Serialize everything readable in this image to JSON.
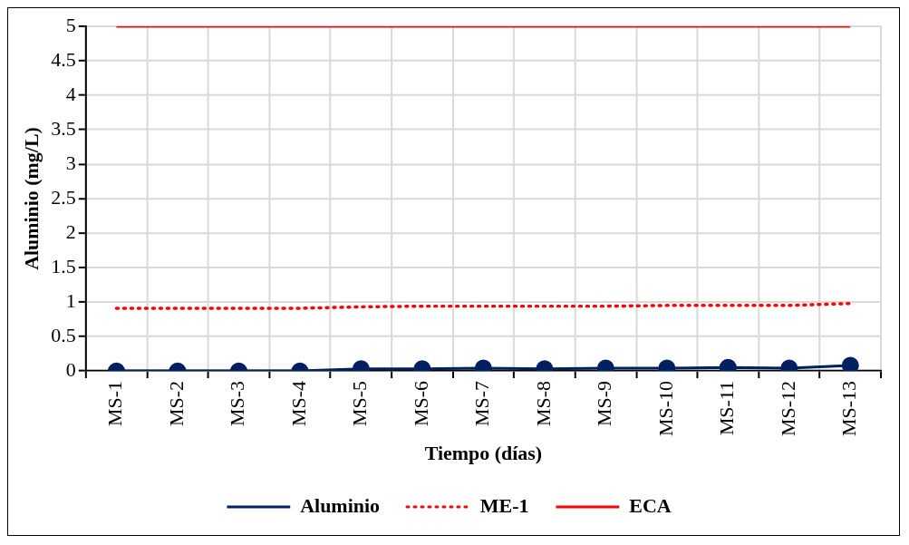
{
  "chart_data": {
    "type": "line",
    "xlabel": "Tiempo (días)",
    "ylabel": "Aluminio (mg/L)",
    "categories": [
      "MS-1",
      "MS-2",
      "MS-3",
      "MS-4",
      "MS-5",
      "MS-6",
      "MS-7",
      "MS-8",
      "MS-9",
      "MS-10",
      "MS-11",
      "MS-12",
      "MS-13"
    ],
    "series": [
      {
        "name": "Aluminio",
        "color": "#002060",
        "marker": "circle",
        "line_style": "solid",
        "values": [
          0,
          0,
          0,
          0,
          0.03,
          0.03,
          0.04,
          0.03,
          0.04,
          0.04,
          0.05,
          0.04,
          0.08
        ]
      },
      {
        "name": "ME-1",
        "color": "#ff0000",
        "marker": "none",
        "line_style": "dotted",
        "values": [
          0.91,
          0.91,
          0.91,
          0.91,
          0.93,
          0.94,
          0.94,
          0.94,
          0.94,
          0.95,
          0.95,
          0.95,
          0.98
        ]
      },
      {
        "name": "ECA",
        "color": "#ff0000",
        "marker": "none",
        "line_style": "solid",
        "values": [
          5,
          5,
          5,
          5,
          5,
          5,
          5,
          5,
          5,
          5,
          5,
          5,
          5
        ]
      }
    ],
    "ylim": [
      0,
      5
    ],
    "yticks": [
      0,
      0.5,
      1,
      1.5,
      2,
      2.5,
      3,
      3.5,
      4,
      4.5,
      5
    ],
    "grid": true,
    "legend": "bottom"
  }
}
